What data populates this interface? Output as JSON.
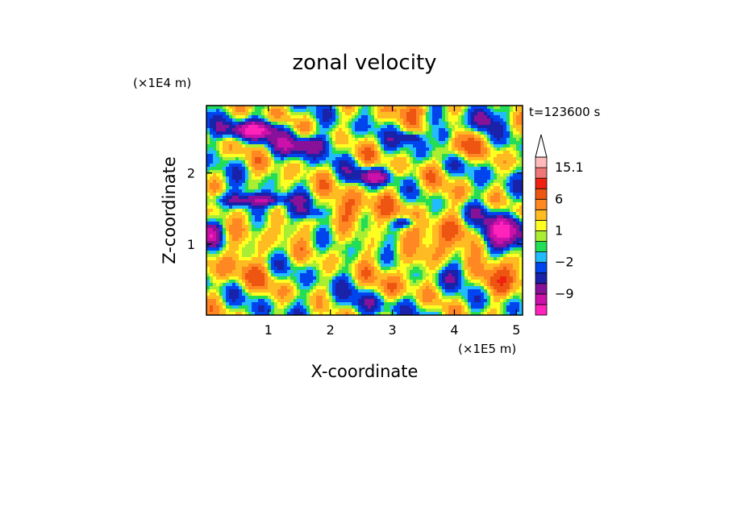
{
  "chart_data": {
    "type": "heatmap",
    "title": "zonal velocity",
    "xlabel": "X-coordinate",
    "ylabel": "Z-coordinate",
    "x_scale_label": "(×1E5 m)",
    "y_scale_label": "(×1E4 m)",
    "time_label": "t=123600 s",
    "xlim": [
      0,
      5.1
    ],
    "ylim": [
      0,
      2.95
    ],
    "x_ticks": [
      1,
      2,
      3,
      4,
      5
    ],
    "y_ticks": [
      1,
      2
    ],
    "colorbar": {
      "levels": [
        -15,
        -12,
        -9,
        -6,
        -4,
        -2,
        -1,
        0,
        1,
        2,
        4,
        6,
        9,
        12,
        15.1
      ],
      "labels": [
        "15.1",
        "6",
        "1",
        "−2",
        "−9"
      ],
      "label_values": [
        15.1,
        6,
        1,
        -2,
        -9
      ],
      "colors": [
        "#ff22bb",
        "#cc11aa",
        "#881199",
        "#1a22aa",
        "#0044ee",
        "#22bbff",
        "#22dd55",
        "#aaee33",
        "#ffff22",
        "#ffbb22",
        "#ff8822",
        "#ee5511",
        "#ee2211",
        "#ee7777",
        "#ffbbbb"
      ],
      "extend": "max"
    },
    "field": {
      "description_note": "",
      "base": 0.3,
      "layers": [
        {
          "z": 2.55,
          "amp": -12,
          "wx": 0.06,
          "note": ""
        },
        {
          "z": 1.6,
          "amp": -9,
          "wx": 0.0
        },
        {
          "z": 1.15,
          "amp": -8,
          "wx": 0.0
        }
      ]
    }
  }
}
